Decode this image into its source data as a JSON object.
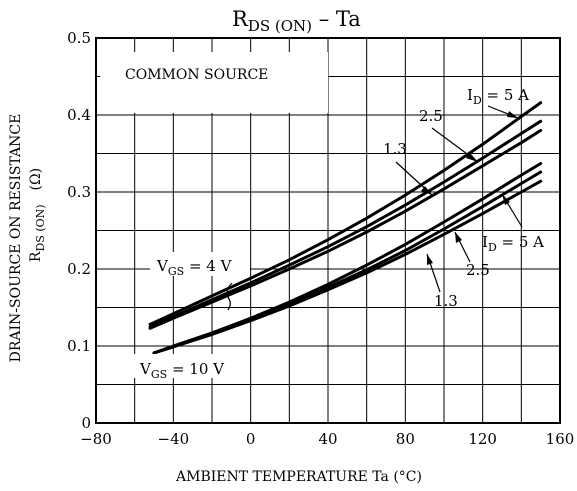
{
  "chart_data": {
    "type": "line",
    "title": {
      "main": "R",
      "sub": "DS (ON)",
      "rest": " – Ta"
    },
    "xlabel": "AMBIENT TEMPERATURE   Ta   (°C)",
    "ylabel": {
      "line1": "DRAIN-SOURCE ON RESISTANCE",
      "line2_main": "R",
      "line2_sub": "DS (ON)",
      "line2_unit": "(Ω)"
    },
    "xlim": [
      -80,
      160
    ],
    "ylim": [
      0,
      0.5
    ],
    "x_ticks": [
      "−80",
      "−40",
      "0",
      "40",
      "80",
      "120",
      "160"
    ],
    "y_ticks": [
      "0",
      "0.1",
      "0.2",
      "0.3",
      "0.4",
      "0.5"
    ],
    "grid": true,
    "x_grid_step": 20,
    "y_grid_step": 0.05,
    "annotation_common_source": "COMMON SOURCE",
    "group_labels": {
      "vgs4": {
        "main": "V",
        "sub": "GS",
        "rest": " = 4 V"
      },
      "vgs10": {
        "main": "V",
        "sub": "GS",
        "rest": " = 10 V"
      }
    },
    "curve_labels": {
      "id5_top": {
        "main": "I",
        "sub": "D",
        "rest": " = 5 A"
      },
      "id25_top": "2.5",
      "id13_top": "1.3",
      "id5_bot": {
        "main": "I",
        "sub": "D",
        "rest": " = 5 A"
      },
      "id25_bot": "2.5",
      "id13_bot": "1.3"
    },
    "series": [
      {
        "name": "I_D = 5 A (V_GS = 4 V)",
        "x": [
          -52,
          -40,
          -20,
          0,
          20,
          40,
          60,
          80,
          100,
          120,
          140,
          150
        ],
        "y": [
          0.128,
          0.142,
          0.165,
          0.188,
          0.212,
          0.238,
          0.266,
          0.296,
          0.328,
          0.362,
          0.398,
          0.416
        ]
      },
      {
        "name": "2.5 (V_GS = 4 V)",
        "x": [
          -52,
          -40,
          -20,
          0,
          20,
          40,
          60,
          80,
          100,
          120,
          140,
          150
        ],
        "y": [
          0.125,
          0.138,
          0.16,
          0.182,
          0.205,
          0.229,
          0.255,
          0.283,
          0.313,
          0.344,
          0.376,
          0.392
        ]
      },
      {
        "name": "1.3 (V_GS = 4 V)",
        "x": [
          -52,
          -40,
          -20,
          0,
          20,
          40,
          60,
          80,
          100,
          120,
          140,
          150
        ],
        "y": [
          0.123,
          0.136,
          0.157,
          0.178,
          0.2,
          0.223,
          0.248,
          0.275,
          0.304,
          0.334,
          0.364,
          0.38
        ]
      },
      {
        "name": "I_D = 5 A (V_GS = 10 V)",
        "x": [
          -50,
          -40,
          -20,
          0,
          20,
          40,
          60,
          80,
          100,
          120,
          140,
          150
        ],
        "y": [
          0.091,
          0.1,
          0.117,
          0.136,
          0.157,
          0.18,
          0.205,
          0.232,
          0.261,
          0.291,
          0.322,
          0.337
        ]
      },
      {
        "name": "2.5 (V_GS = 10 V)",
        "x": [
          -50,
          -40,
          -20,
          0,
          20,
          40,
          60,
          80,
          100,
          120,
          140,
          150
        ],
        "y": [
          0.091,
          0.099,
          0.116,
          0.134,
          0.154,
          0.176,
          0.199,
          0.224,
          0.252,
          0.281,
          0.311,
          0.326
        ]
      },
      {
        "name": "1.3 (V_GS = 10 V)",
        "x": [
          -50,
          -40,
          -20,
          0,
          20,
          40,
          60,
          80,
          100,
          120,
          140,
          150
        ],
        "y": [
          0.091,
          0.099,
          0.115,
          0.133,
          0.152,
          0.173,
          0.195,
          0.219,
          0.245,
          0.272,
          0.3,
          0.314
        ]
      }
    ]
  }
}
